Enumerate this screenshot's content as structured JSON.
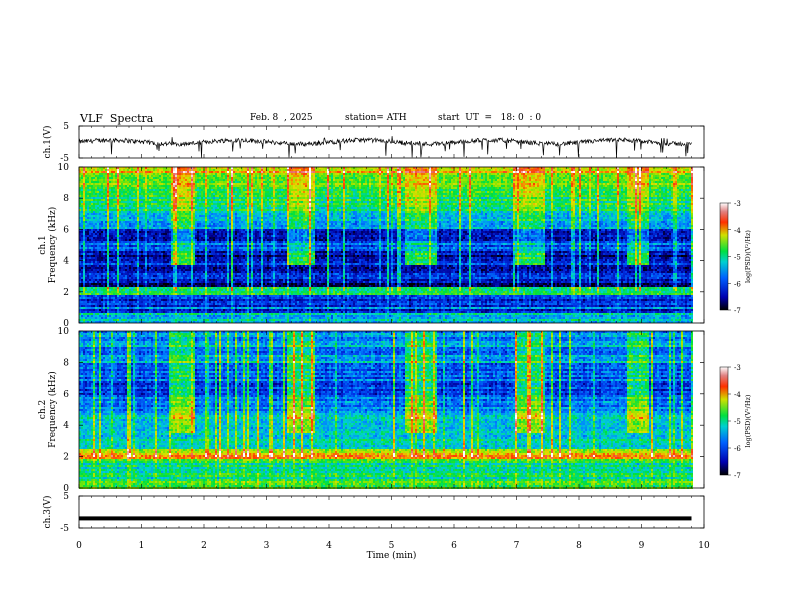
{
  "header": {
    "title": "VLF  Spectra",
    "date": "Feb. 8  , 2025",
    "station": "station= ATH",
    "start": "start  UT  =   18: 0  : 0"
  },
  "chart_data": [
    {
      "type": "line",
      "ylabel": "ch.1(V)",
      "ylim": [
        -5,
        5
      ],
      "yticks": [
        "5",
        "-5"
      ],
      "description_values": {
        "baseline": 0,
        "spike_min": -5,
        "spike_max": 2
      }
    },
    {
      "type": "heatmap",
      "ylabel": "ch.1\nFrequency (kHz)",
      "ylim": [
        0,
        10
      ],
      "yticks": [
        "0",
        "2",
        "4",
        "6",
        "8",
        "10"
      ],
      "colorbar": {
        "label": "log(PSD)(V²/Hz)",
        "range": [
          -7,
          -3
        ],
        "ticks": [
          "-3",
          "-4",
          "-5",
          "-6",
          "-7"
        ]
      },
      "bursts_min": [
        [
          1.45,
          1.85
        ],
        [
          3.3,
          3.75
        ],
        [
          5.2,
          5.7
        ],
        [
          6.95,
          7.45
        ],
        [
          8.75,
          9.1
        ]
      ],
      "burst_band_khz": [
        3.8,
        4.5
      ]
    },
    {
      "type": "heatmap",
      "ylabel": "ch.2\nFrequency (kHz)",
      "ylim": [
        0,
        10
      ],
      "yticks": [
        "0",
        "2",
        "4",
        "6",
        "8",
        "10"
      ],
      "colorbar": {
        "label": "log(PSD)(V²/Hz)",
        "range": [
          -7,
          -3
        ],
        "ticks": [
          "-3",
          "-4",
          "-5",
          "-6",
          "-7"
        ]
      },
      "bursts_min": [
        [
          1.45,
          1.85
        ],
        [
          3.3,
          3.75
        ],
        [
          5.2,
          5.7
        ],
        [
          6.95,
          7.45
        ],
        [
          8.75,
          9.1
        ]
      ],
      "burst_band_khz": [
        3.6,
        4.3
      ]
    },
    {
      "type": "line",
      "ylabel": "ch.3(V)",
      "ylim": [
        -5,
        5
      ],
      "yticks": [
        "5",
        "-5"
      ],
      "description_values": {
        "level": -2
      }
    }
  ],
  "xaxis": {
    "label": "Time  (min)",
    "range": [
      0,
      10
    ],
    "ticks": [
      "0",
      "1",
      "2",
      "3",
      "4",
      "5",
      "6",
      "7",
      "8",
      "9",
      "10"
    ],
    "data_end": 9.8
  }
}
